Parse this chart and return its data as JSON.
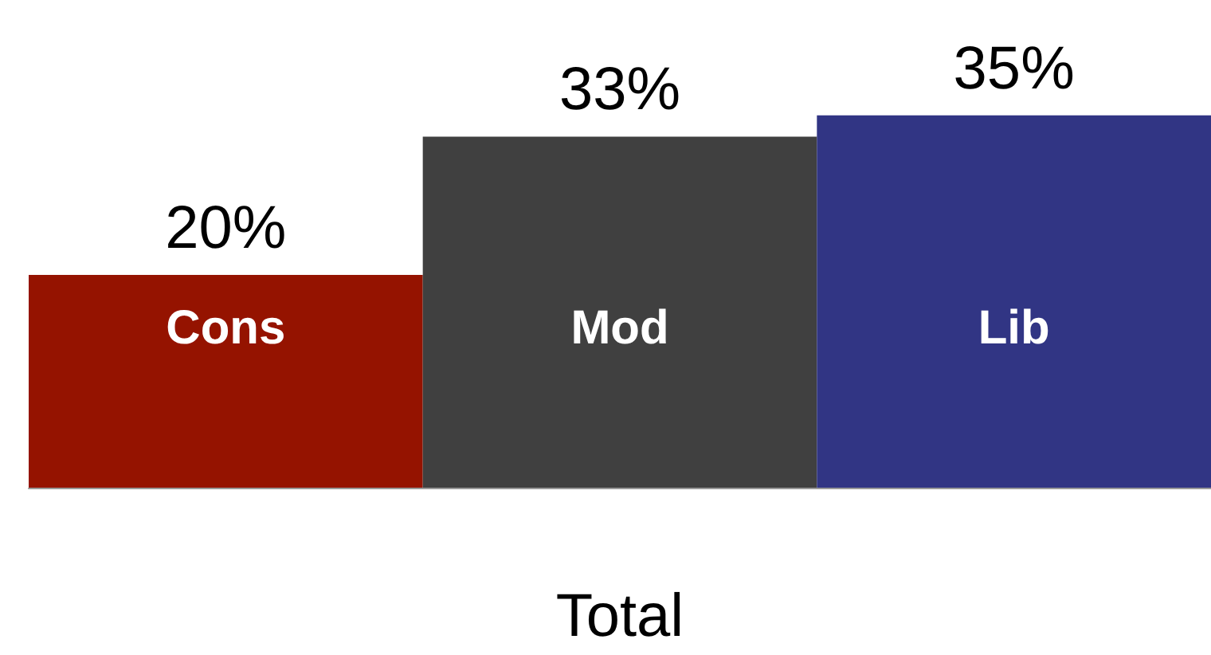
{
  "chart_data": {
    "type": "bar",
    "xlabel": "Total",
    "categories": [
      "Cons",
      "Mod",
      "Lib"
    ],
    "values": [
      20,
      33,
      35
    ],
    "colors": [
      "#951300",
      "#404040",
      "#313584"
    ],
    "value_labels": [
      "20%",
      "33%",
      "35%"
    ],
    "tick_labels": "x"
  }
}
